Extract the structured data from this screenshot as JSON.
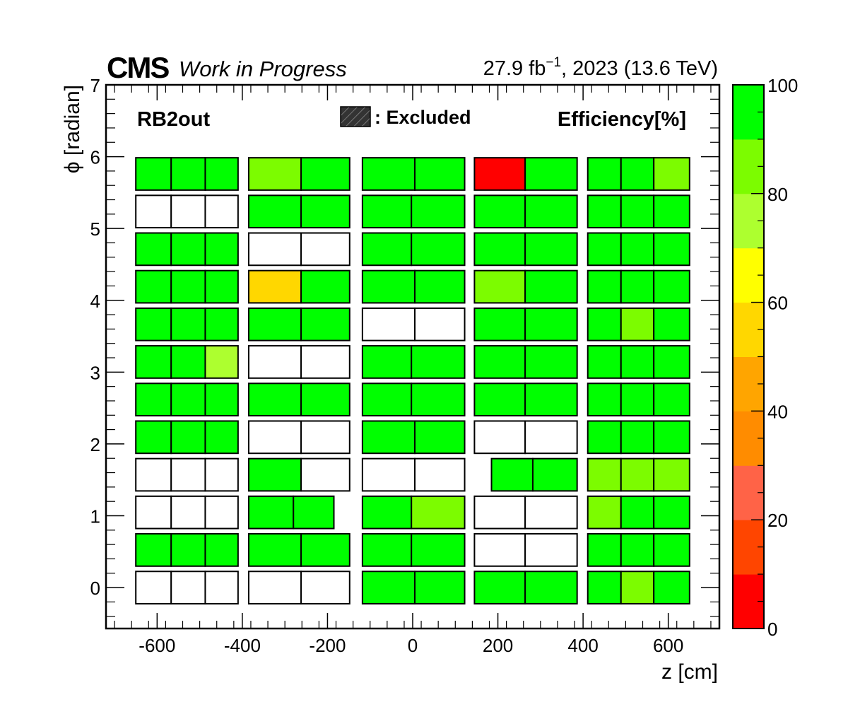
{
  "header": {
    "experiment": "CMS",
    "status": "Work in Progress",
    "lumi_base": "27.9 fb",
    "lumi_exp": "−1",
    "lumi_rest": ", 2023 (13.6 TeV)"
  },
  "chart_data": {
    "type": "heatmap",
    "title": "RB2out",
    "xlabel": "z [cm]",
    "ylabel": "ϕ [radian]",
    "zlabel": "Efficiency[%]",
    "legend_excluded": ": Excluded",
    "xlim": [
      -720,
      720
    ],
    "ylim": [
      -0.57,
      7
    ],
    "zlim": [
      0,
      100
    ],
    "x_ticks": [
      -600,
      -400,
      -200,
      0,
      200,
      400,
      600
    ],
    "x_tick_labels": [
      "-600",
      "-400",
      "-200",
      "0",
      "200",
      "400",
      "600"
    ],
    "y_ticks": [
      0,
      1,
      2,
      3,
      4,
      5,
      6,
      7
    ],
    "y_tick_labels": [
      "0",
      "1",
      "2",
      "3",
      "4",
      "5",
      "6",
      "7"
    ],
    "z_ticks": [
      0,
      20,
      40,
      60,
      80,
      100
    ],
    "z_tick_labels": [
      "0",
      "20",
      "40",
      "60",
      "80",
      "100"
    ],
    "palette": [
      "#ff0000",
      "#ff4500",
      "#ff6347",
      "#ff8c00",
      "#ffa500",
      "#ffd700",
      "#ffff00",
      "#adff2f",
      "#7cfc00",
      "#00ff00"
    ],
    "phi_rows": [
      0,
      1,
      2,
      3,
      4,
      5,
      6,
      7,
      8,
      9,
      10,
      11
    ],
    "cells": [
      {
        "row": 11,
        "z0": -650,
        "z1": -567,
        "eff": 100
      },
      {
        "row": 11,
        "z0": -567,
        "z1": -487,
        "eff": 100
      },
      {
        "row": 11,
        "z0": -487,
        "z1": -410,
        "eff": 100
      },
      {
        "row": 11,
        "z0": -385,
        "z1": -262,
        "eff": 85
      },
      {
        "row": 11,
        "z0": -262,
        "z1": -148,
        "eff": 100
      },
      {
        "row": 11,
        "z0": -118,
        "z1": 5,
        "eff": 100
      },
      {
        "row": 11,
        "z0": 5,
        "z1": 122,
        "eff": 100
      },
      {
        "row": 11,
        "z0": 145,
        "z1": 264,
        "eff": 2
      },
      {
        "row": 11,
        "z0": 264,
        "z1": 386,
        "eff": 100
      },
      {
        "row": 11,
        "z0": 411,
        "z1": 489,
        "eff": 100
      },
      {
        "row": 11,
        "z0": 489,
        "z1": 566,
        "eff": 100
      },
      {
        "row": 11,
        "z0": 566,
        "z1": 650,
        "eff": 85
      },
      {
        "row": 10,
        "z0": -650,
        "z1": -567,
        "eff": null
      },
      {
        "row": 10,
        "z0": -567,
        "z1": -487,
        "eff": null
      },
      {
        "row": 10,
        "z0": -487,
        "z1": -410,
        "eff": null
      },
      {
        "row": 10,
        "z0": -385,
        "z1": -262,
        "eff": 100
      },
      {
        "row": 10,
        "z0": -262,
        "z1": -148,
        "eff": 100
      },
      {
        "row": 10,
        "z0": -118,
        "z1": -3,
        "eff": 100
      },
      {
        "row": 10,
        "z0": -3,
        "z1": 122,
        "eff": 100
      },
      {
        "row": 10,
        "z0": 145,
        "z1": 264,
        "eff": 100
      },
      {
        "row": 10,
        "z0": 264,
        "z1": 386,
        "eff": 100
      },
      {
        "row": 10,
        "z0": 411,
        "z1": 489,
        "eff": 100
      },
      {
        "row": 10,
        "z0": 489,
        "z1": 566,
        "eff": 100
      },
      {
        "row": 10,
        "z0": 566,
        "z1": 650,
        "eff": 100
      },
      {
        "row": 9,
        "z0": -650,
        "z1": -567,
        "eff": 100
      },
      {
        "row": 9,
        "z0": -567,
        "z1": -487,
        "eff": 100
      },
      {
        "row": 9,
        "z0": -487,
        "z1": -410,
        "eff": 100
      },
      {
        "row": 9,
        "z0": -385,
        "z1": -262,
        "eff": null
      },
      {
        "row": 9,
        "z0": -262,
        "z1": -148,
        "eff": null
      },
      {
        "row": 9,
        "z0": -118,
        "z1": -3,
        "eff": 100
      },
      {
        "row": 9,
        "z0": -3,
        "z1": 122,
        "eff": 100
      },
      {
        "row": 9,
        "z0": 145,
        "z1": 264,
        "eff": 100
      },
      {
        "row": 9,
        "z0": 264,
        "z1": 386,
        "eff": 100
      },
      {
        "row": 9,
        "z0": 411,
        "z1": 489,
        "eff": 100
      },
      {
        "row": 9,
        "z0": 489,
        "z1": 566,
        "eff": 100
      },
      {
        "row": 9,
        "z0": 566,
        "z1": 650,
        "eff": 100
      },
      {
        "row": 8,
        "z0": -650,
        "z1": -567,
        "eff": 100
      },
      {
        "row": 8,
        "z0": -567,
        "z1": -487,
        "eff": 100
      },
      {
        "row": 8,
        "z0": -487,
        "z1": -410,
        "eff": 100
      },
      {
        "row": 8,
        "z0": -385,
        "z1": -262,
        "eff": 55
      },
      {
        "row": 8,
        "z0": -262,
        "z1": -148,
        "eff": 100
      },
      {
        "row": 8,
        "z0": -118,
        "z1": 5,
        "eff": 100
      },
      {
        "row": 8,
        "z0": 5,
        "z1": 122,
        "eff": 100
      },
      {
        "row": 8,
        "z0": 145,
        "z1": 264,
        "eff": 85
      },
      {
        "row": 8,
        "z0": 264,
        "z1": 386,
        "eff": 100
      },
      {
        "row": 8,
        "z0": 411,
        "z1": 489,
        "eff": 100
      },
      {
        "row": 8,
        "z0": 489,
        "z1": 566,
        "eff": 100
      },
      {
        "row": 8,
        "z0": 566,
        "z1": 650,
        "eff": 100
      },
      {
        "row": 7,
        "z0": -650,
        "z1": -567,
        "eff": 100
      },
      {
        "row": 7,
        "z0": -567,
        "z1": -487,
        "eff": 100
      },
      {
        "row": 7,
        "z0": -487,
        "z1": -410,
        "eff": 100
      },
      {
        "row": 7,
        "z0": -385,
        "z1": -262,
        "eff": 100
      },
      {
        "row": 7,
        "z0": -262,
        "z1": -148,
        "eff": 100
      },
      {
        "row": 7,
        "z0": -118,
        "z1": 5,
        "eff": null
      },
      {
        "row": 7,
        "z0": 5,
        "z1": 122,
        "eff": null
      },
      {
        "row": 7,
        "z0": 145,
        "z1": 264,
        "eff": 100
      },
      {
        "row": 7,
        "z0": 264,
        "z1": 386,
        "eff": 100
      },
      {
        "row": 7,
        "z0": 411,
        "z1": 489,
        "eff": 100
      },
      {
        "row": 7,
        "z0": 489,
        "z1": 566,
        "eff": 85
      },
      {
        "row": 7,
        "z0": 566,
        "z1": 650,
        "eff": 100
      },
      {
        "row": 6,
        "z0": -650,
        "z1": -567,
        "eff": 100
      },
      {
        "row": 6,
        "z0": -567,
        "z1": -487,
        "eff": 100
      },
      {
        "row": 6,
        "z0": -487,
        "z1": -410,
        "eff": 75
      },
      {
        "row": 6,
        "z0": -385,
        "z1": -262,
        "eff": null
      },
      {
        "row": 6,
        "z0": -262,
        "z1": -148,
        "eff": null
      },
      {
        "row": 6,
        "z0": -118,
        "z1": -3,
        "eff": 100
      },
      {
        "row": 6,
        "z0": -3,
        "z1": 122,
        "eff": 100
      },
      {
        "row": 6,
        "z0": 145,
        "z1": 264,
        "eff": 100
      },
      {
        "row": 6,
        "z0": 264,
        "z1": 386,
        "eff": 100
      },
      {
        "row": 6,
        "z0": 411,
        "z1": 489,
        "eff": 100
      },
      {
        "row": 6,
        "z0": 489,
        "z1": 566,
        "eff": 100
      },
      {
        "row": 6,
        "z0": 566,
        "z1": 650,
        "eff": 100
      },
      {
        "row": 5,
        "z0": -650,
        "z1": -567,
        "eff": 100
      },
      {
        "row": 5,
        "z0": -567,
        "z1": -487,
        "eff": 100
      },
      {
        "row": 5,
        "z0": -487,
        "z1": -410,
        "eff": 100
      },
      {
        "row": 5,
        "z0": -385,
        "z1": -262,
        "eff": 100
      },
      {
        "row": 5,
        "z0": -262,
        "z1": -148,
        "eff": 100
      },
      {
        "row": 5,
        "z0": -118,
        "z1": -3,
        "eff": 100
      },
      {
        "row": 5,
        "z0": -3,
        "z1": 122,
        "eff": 100
      },
      {
        "row": 5,
        "z0": 145,
        "z1": 264,
        "eff": 100
      },
      {
        "row": 5,
        "z0": 264,
        "z1": 386,
        "eff": 100
      },
      {
        "row": 5,
        "z0": 411,
        "z1": 489,
        "eff": 100
      },
      {
        "row": 5,
        "z0": 489,
        "z1": 566,
        "eff": 100
      },
      {
        "row": 5,
        "z0": 566,
        "z1": 650,
        "eff": 100
      },
      {
        "row": 4,
        "z0": -650,
        "z1": -567,
        "eff": 100
      },
      {
        "row": 4,
        "z0": -567,
        "z1": -487,
        "eff": 100
      },
      {
        "row": 4,
        "z0": -487,
        "z1": -410,
        "eff": 100
      },
      {
        "row": 4,
        "z0": -385,
        "z1": -262,
        "eff": null
      },
      {
        "row": 4,
        "z0": -262,
        "z1": -148,
        "eff": null
      },
      {
        "row": 4,
        "z0": -118,
        "z1": 5,
        "eff": 100
      },
      {
        "row": 4,
        "z0": 5,
        "z1": 122,
        "eff": 100
      },
      {
        "row": 4,
        "z0": 145,
        "z1": 264,
        "eff": null
      },
      {
        "row": 4,
        "z0": 264,
        "z1": 386,
        "eff": null
      },
      {
        "row": 4,
        "z0": 411,
        "z1": 489,
        "eff": 100
      },
      {
        "row": 4,
        "z0": 489,
        "z1": 566,
        "eff": 100
      },
      {
        "row": 4,
        "z0": 566,
        "z1": 650,
        "eff": 100
      },
      {
        "row": 3,
        "z0": -650,
        "z1": -567,
        "eff": null
      },
      {
        "row": 3,
        "z0": -567,
        "z1": -487,
        "eff": null
      },
      {
        "row": 3,
        "z0": -487,
        "z1": -410,
        "eff": null
      },
      {
        "row": 3,
        "z0": -385,
        "z1": -262,
        "eff": 100
      },
      {
        "row": 3,
        "z0": -262,
        "z1": -148,
        "eff": null
      },
      {
        "row": 3,
        "z0": -118,
        "z1": 5,
        "eff": null
      },
      {
        "row": 3,
        "z0": 5,
        "z1": 122,
        "eff": null
      },
      {
        "row": 3,
        "z0": 185,
        "z1": 282,
        "eff": 100
      },
      {
        "row": 3,
        "z0": 282,
        "z1": 386,
        "eff": 100
      },
      {
        "row": 3,
        "z0": 411,
        "z1": 489,
        "eff": 85
      },
      {
        "row": 3,
        "z0": 489,
        "z1": 566,
        "eff": 85
      },
      {
        "row": 3,
        "z0": 566,
        "z1": 650,
        "eff": 85
      },
      {
        "row": 2,
        "z0": -650,
        "z1": -567,
        "eff": null
      },
      {
        "row": 2,
        "z0": -567,
        "z1": -487,
        "eff": null
      },
      {
        "row": 2,
        "z0": -487,
        "z1": -410,
        "eff": null
      },
      {
        "row": 2,
        "z0": -385,
        "z1": -280,
        "eff": 100
      },
      {
        "row": 2,
        "z0": -280,
        "z1": -185,
        "eff": 100
      },
      {
        "row": 2,
        "z0": -118,
        "z1": -3,
        "eff": 100
      },
      {
        "row": 2,
        "z0": -3,
        "z1": 122,
        "eff": 85
      },
      {
        "row": 2,
        "z0": 145,
        "z1": 264,
        "eff": null
      },
      {
        "row": 2,
        "z0": 264,
        "z1": 386,
        "eff": null
      },
      {
        "row": 2,
        "z0": 411,
        "z1": 489,
        "eff": 85
      },
      {
        "row": 2,
        "z0": 489,
        "z1": 566,
        "eff": 100
      },
      {
        "row": 2,
        "z0": 566,
        "z1": 650,
        "eff": 100
      },
      {
        "row": 1,
        "z0": -650,
        "z1": -567,
        "eff": 100
      },
      {
        "row": 1,
        "z0": -567,
        "z1": -487,
        "eff": 100
      },
      {
        "row": 1,
        "z0": -487,
        "z1": -410,
        "eff": 100
      },
      {
        "row": 1,
        "z0": -385,
        "z1": -262,
        "eff": 100
      },
      {
        "row": 1,
        "z0": -262,
        "z1": -148,
        "eff": 100
      },
      {
        "row": 1,
        "z0": -118,
        "z1": -3,
        "eff": 100
      },
      {
        "row": 1,
        "z0": -3,
        "z1": 122,
        "eff": 100
      },
      {
        "row": 1,
        "z0": 145,
        "z1": 264,
        "eff": null
      },
      {
        "row": 1,
        "z0": 264,
        "z1": 386,
        "eff": null
      },
      {
        "row": 1,
        "z0": 411,
        "z1": 489,
        "eff": 100
      },
      {
        "row": 1,
        "z0": 489,
        "z1": 566,
        "eff": 100
      },
      {
        "row": 1,
        "z0": 566,
        "z1": 650,
        "eff": 100
      },
      {
        "row": 0,
        "z0": -650,
        "z1": -567,
        "eff": null
      },
      {
        "row": 0,
        "z0": -567,
        "z1": -487,
        "eff": null
      },
      {
        "row": 0,
        "z0": -487,
        "z1": -410,
        "eff": null
      },
      {
        "row": 0,
        "z0": -385,
        "z1": -262,
        "eff": null
      },
      {
        "row": 0,
        "z0": -262,
        "z1": -148,
        "eff": null
      },
      {
        "row": 0,
        "z0": -118,
        "z1": 5,
        "eff": 100
      },
      {
        "row": 0,
        "z0": 5,
        "z1": 122,
        "eff": 100
      },
      {
        "row": 0,
        "z0": 145,
        "z1": 264,
        "eff": 100
      },
      {
        "row": 0,
        "z0": 264,
        "z1": 386,
        "eff": 100
      },
      {
        "row": 0,
        "z0": 411,
        "z1": 489,
        "eff": 100
      },
      {
        "row": 0,
        "z0": 489,
        "z1": 566,
        "eff": 85
      },
      {
        "row": 0,
        "z0": 566,
        "z1": 650,
        "eff": 100
      }
    ]
  }
}
